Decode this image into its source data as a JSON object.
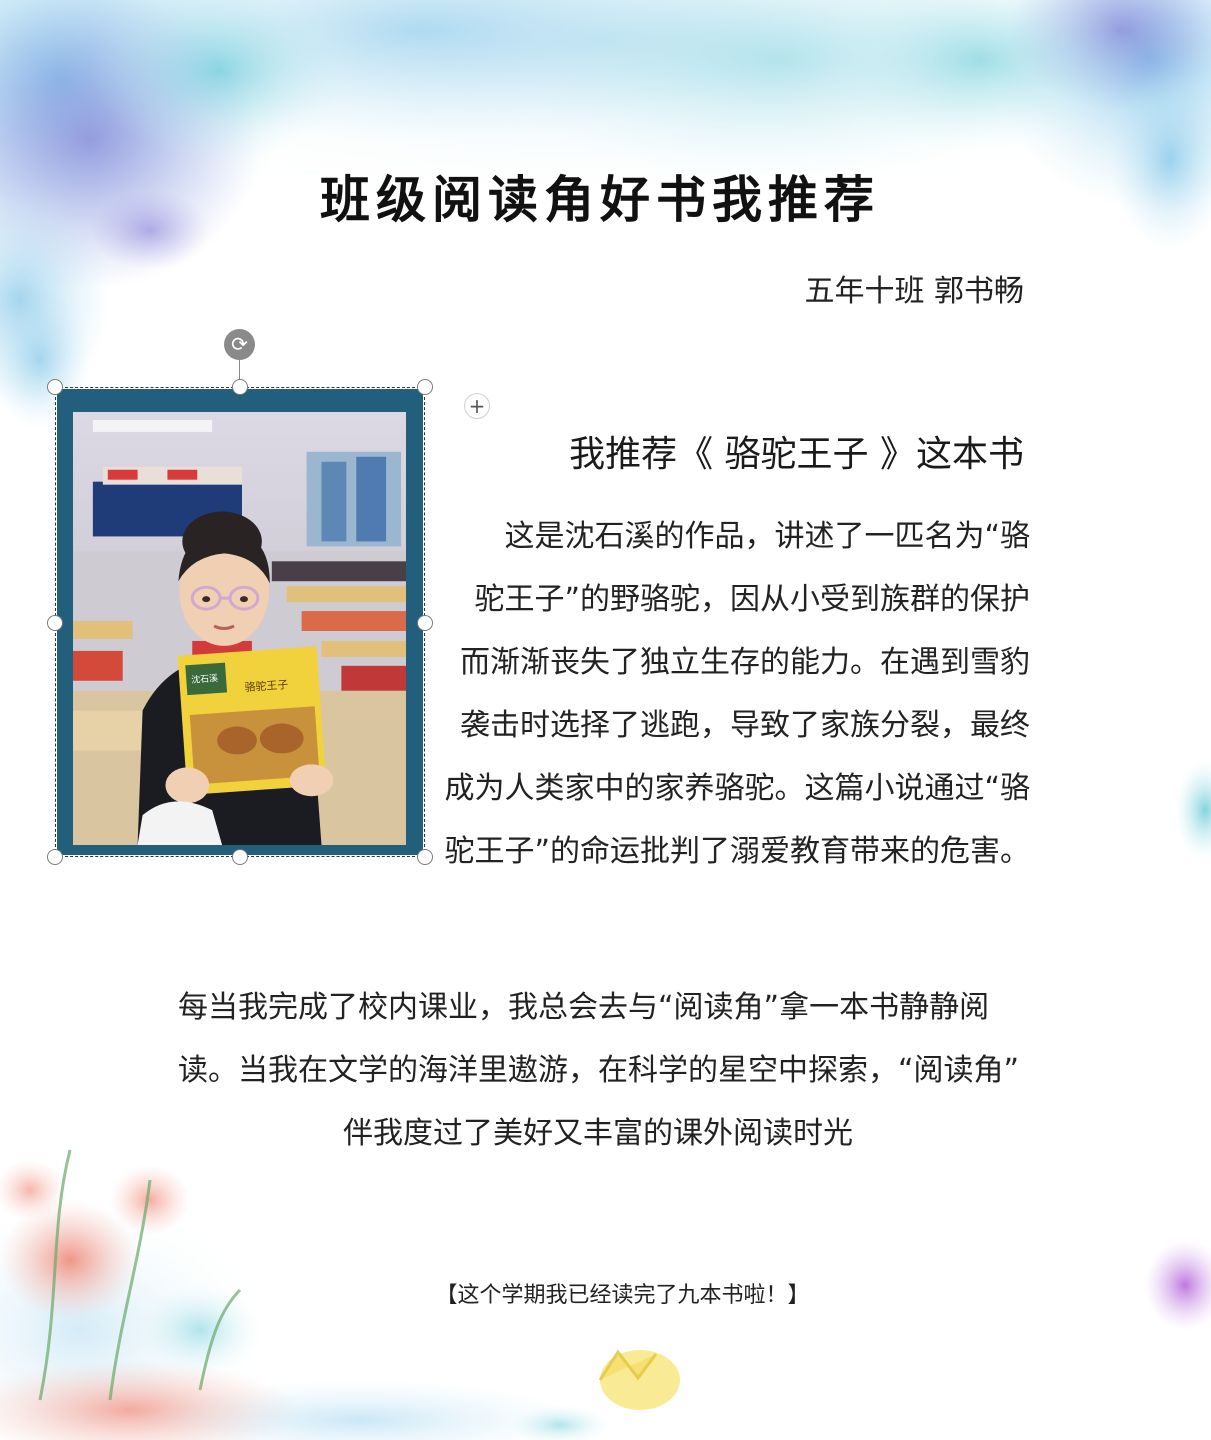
{
  "header": {
    "title": "班级阅读角好书我推荐",
    "author": "五年十班  郭书畅"
  },
  "photo": {
    "book_cover_title": "骆驼王子",
    "book_series_mark": "沈石溪",
    "frame_color": "#215f7c"
  },
  "recommendation": {
    "heading": "我推荐《  骆驼王子  》这本书",
    "lines": [
      "这是沈石溪的作品，讲述了一匹名为“骆",
      "驼王子”的野骆驼，因从小受到族群的保护",
      "而渐渐丧失了独立生存的能力。在遇到雪豹",
      "袭击时选择了逃跑，导致了家族分裂，最终",
      "成为人类家中的家养骆驼。这篇小说通过“骆",
      "驼王子”的命运批判了溺爱教育带来的危害。"
    ]
  },
  "reading_corner": {
    "lines": [
      "每当我完成了校内课业，我总会去与“阅读角”拿一本书静静阅",
      "读。当我在文学的海洋里遨游，在科学的星空中探索，“阅读角”",
      "伴我度过了美好又丰富的课外阅读时光"
    ]
  },
  "footer_note": "【这个学期我已经读完了九本书啦！】",
  "icons": {
    "rotate": "rotate-icon",
    "add": "plus-icon"
  },
  "colors": {
    "frame": "#215f7c",
    "book_yellow": "#f1d23c"
  }
}
